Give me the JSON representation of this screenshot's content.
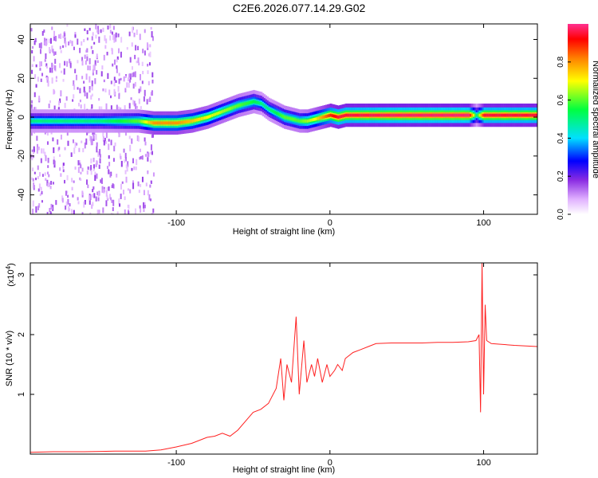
{
  "title": "C2E6.2026.077.14.29.G02",
  "chart_data": [
    {
      "type": "heatmap",
      "title": "",
      "xlabel": "Height of straight line (km)",
      "ylabel": "Frequency (Hz)",
      "xlim": [
        -195,
        135
      ],
      "ylim": [
        -50,
        48
      ],
      "xticks": [
        -100,
        0,
        100
      ],
      "yticks": [
        -40,
        -20,
        0,
        20,
        40
      ],
      "colorbar": {
        "label": "Normalized spectral amplitude",
        "range": [
          0.0,
          1.0
        ],
        "ticks": [
          "0.0",
          "0.2",
          "0.4",
          "0.6",
          "0.8"
        ]
      },
      "ridge": {
        "x": [
          -195,
          -170,
          -150,
          -125,
          -115,
          -100,
          -90,
          -80,
          -70,
          -60,
          -50,
          -45,
          -40,
          -35,
          -30,
          -25,
          -20,
          -15,
          -10,
          -5,
          0,
          5,
          10,
          40,
          90,
          95,
          100,
          135
        ],
        "y": [
          -2,
          -2,
          -2,
          -2,
          -3,
          -3,
          -2,
          0,
          3,
          6,
          8,
          7,
          4,
          2,
          0,
          -1,
          -2,
          -2,
          -1,
          0,
          1,
          0,
          1,
          1,
          1,
          1,
          1,
          1
        ],
        "amp": [
          0.5,
          0.5,
          0.5,
          0.6,
          0.8,
          0.8,
          0.75,
          0.7,
          0.65,
          0.6,
          0.55,
          0.5,
          0.5,
          0.55,
          0.6,
          0.6,
          0.6,
          0.65,
          0.7,
          0.8,
          0.9,
          0.95,
          0.95,
          0.97,
          0.98,
          0.5,
          0.95,
          0.95
        ]
      }
    },
    {
      "type": "line",
      "title": "",
      "xlabel": "Height of straight line (km)",
      "ylabel": "SNR (10 * v/v)",
      "multiplier": "(x10",
      "multiplier_exp": "4",
      "multiplier_close": ")",
      "xlim": [
        -195,
        135
      ],
      "ylim": [
        0,
        3.2
      ],
      "xticks": [
        -100,
        0,
        100
      ],
      "yticks": [
        1,
        2,
        3
      ],
      "color": "#ff2020",
      "series": [
        {
          "x": [
            -195,
            -180,
            -160,
            -140,
            -120,
            -110,
            -100,
            -90,
            -80,
            -75,
            -70,
            -65,
            -60,
            -55,
            -50,
            -45,
            -40,
            -35,
            -32,
            -30,
            -28,
            -25,
            -22,
            -20,
            -17,
            -15,
            -12,
            -10,
            -8,
            -5,
            -2,
            0,
            3,
            5,
            8,
            10,
            15,
            20,
            25,
            30,
            40,
            50,
            60,
            70,
            80,
            90,
            95,
            97,
            98,
            99,
            100,
            101,
            102,
            105,
            110,
            120,
            135
          ],
          "y": [
            0.03,
            0.04,
            0.04,
            0.05,
            0.05,
            0.07,
            0.12,
            0.18,
            0.28,
            0.3,
            0.35,
            0.3,
            0.4,
            0.55,
            0.7,
            0.75,
            0.85,
            1.1,
            1.6,
            0.9,
            1.5,
            1.2,
            2.3,
            1.0,
            1.9,
            1.2,
            1.5,
            1.3,
            1.6,
            1.2,
            1.5,
            1.3,
            1.4,
            1.5,
            1.4,
            1.6,
            1.7,
            1.75,
            1.8,
            1.85,
            1.86,
            1.86,
            1.86,
            1.87,
            1.87,
            1.88,
            1.9,
            2.0,
            0.7,
            3.2,
            1.0,
            2.5,
            1.9,
            1.85,
            1.84,
            1.82,
            1.8
          ]
        }
      ]
    }
  ]
}
